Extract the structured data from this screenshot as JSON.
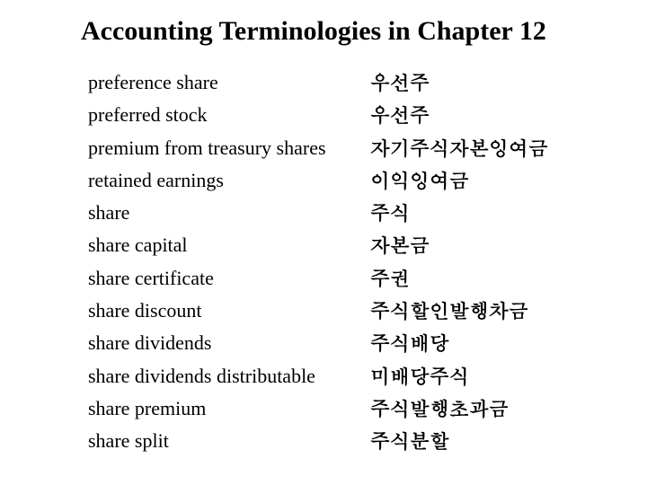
{
  "title": "Accounting Terminologies in Chapter 12",
  "terms": [
    {
      "en": "preference share",
      "ko": "우선주"
    },
    {
      "en": "preferred stock",
      "ko": "우선주"
    },
    {
      "en": "premium from treasury shares",
      "ko": "자기주식자본잉여금"
    },
    {
      "en": "retained earnings",
      "ko": "이익잉여금"
    },
    {
      "en": "share",
      "ko": "주식"
    },
    {
      "en": "share capital",
      "ko": "자본금"
    },
    {
      "en": "share certificate",
      "ko": "주권"
    },
    {
      "en": "share discount",
      "ko": "주식할인발행차금"
    },
    {
      "en": "share dividends",
      "ko": "주식배당"
    },
    {
      "en": "share dividends distributable",
      "ko": "미배당주식"
    },
    {
      "en": "share premium",
      "ko": "주식발행초과금"
    },
    {
      "en": "share split",
      "ko": "주식분할"
    }
  ],
  "colors": {
    "background": "#ffffff",
    "text": "#000000"
  },
  "typography": {
    "title_fontsize_pt": 30,
    "body_fontsize_pt": 22,
    "font_family_en": "Times New Roman",
    "font_family_ko": "Malgun Gothic"
  }
}
